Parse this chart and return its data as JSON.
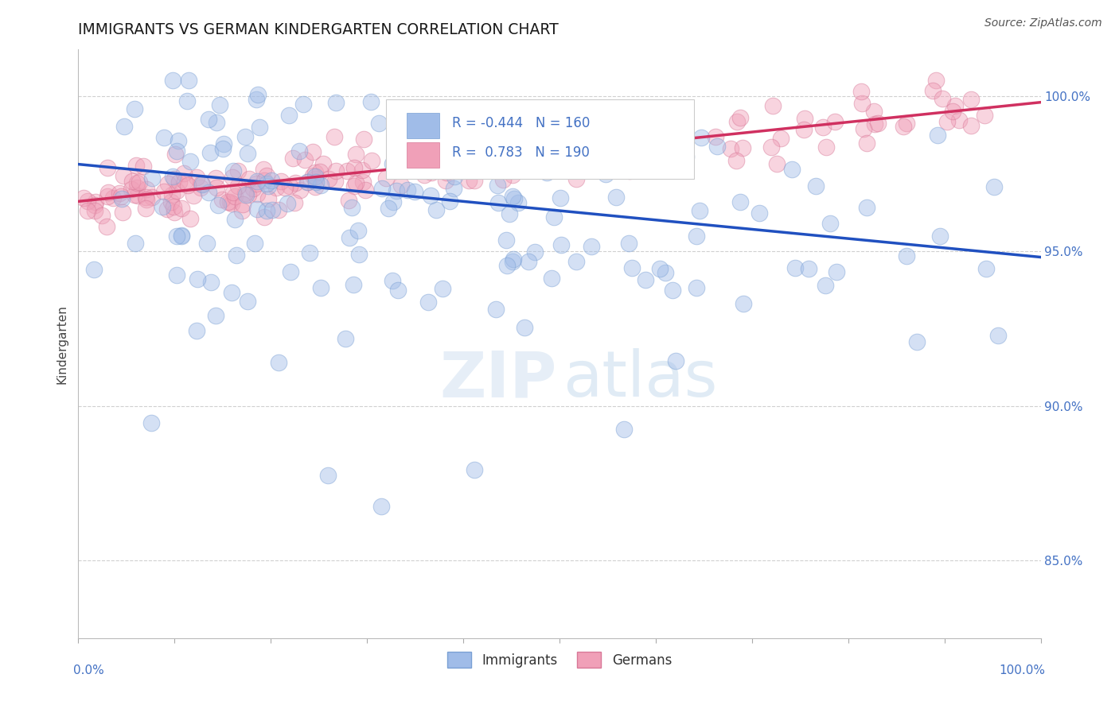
{
  "title": "IMMIGRANTS VS GERMAN KINDERGARTEN CORRELATION CHART",
  "source": "Source: ZipAtlas.com",
  "ylabel": "Kindergarten",
  "immigrants_color": "#a0bce8",
  "immigrants_edge_color": "#7aa0d4",
  "germans_color": "#f0a0b8",
  "germans_edge_color": "#d87898",
  "immigrants_line_color": "#2050c0",
  "germans_line_color": "#d03060",
  "R_immigrants": -0.444,
  "N_immigrants": 160,
  "R_germans": 0.783,
  "N_germans": 190,
  "imm_line_y0": 0.978,
  "imm_line_y1": 0.948,
  "ger_line_y0": 0.966,
  "ger_line_y1": 0.998,
  "xlim": [
    0.0,
    1.0
  ],
  "ylim": [
    0.825,
    1.015
  ],
  "y_ticks": [
    0.85,
    0.9,
    0.95,
    1.0
  ],
  "y_tick_labels": [
    "85.0%",
    "90.0%",
    "95.0%",
    "100.0%"
  ],
  "background_color": "#ffffff",
  "tick_color": "#4472c4",
  "grid_color": "#d0d0d0",
  "watermark_zip_color": "#dce8f4",
  "watermark_atlas_color": "#c8dced",
  "legend_text_color": "#4472c4",
  "legend_box_edge": "#cccccc"
}
